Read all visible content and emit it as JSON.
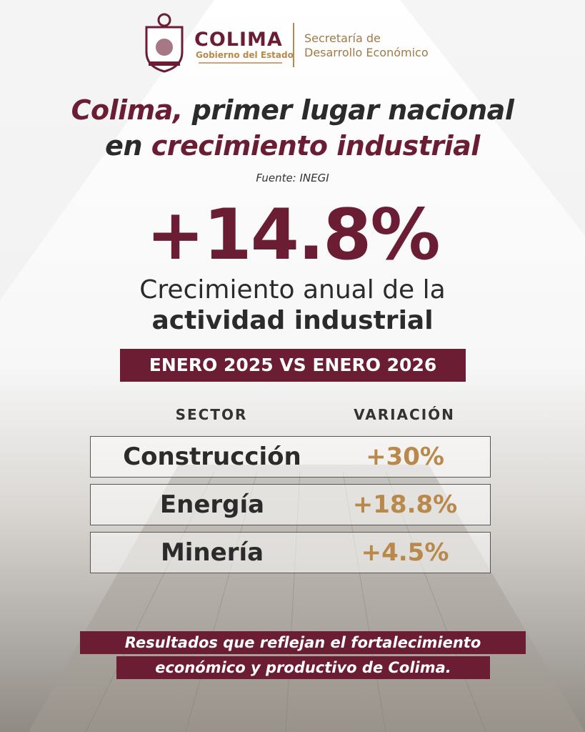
{
  "header": {
    "brand": "COLIMA",
    "brand_sub": "Gobierno del Estado",
    "office_line1": "Secretaría de",
    "office_line2": "Desarrollo Económico"
  },
  "title": {
    "line1": [
      {
        "text": "Colima,",
        "accent": true
      },
      {
        "text": "primer lugar nacional",
        "accent": false
      }
    ],
    "line2": [
      {
        "text": "en",
        "accent": false
      },
      {
        "text": "crecimiento industrial",
        "accent": true
      }
    ]
  },
  "source": "Fuente: INEGI",
  "headline": "+14.8%",
  "description": {
    "line1": "Crecimiento anual de la",
    "line2": "actividad industrial"
  },
  "period": "ENERO 2025 VS ENERO 2026",
  "table": {
    "columns": [
      "SECTOR",
      "VARIACIÓN"
    ],
    "rows": [
      [
        "Construcción",
        "+30%"
      ],
      [
        "Energía",
        "+18.8%"
      ],
      [
        "Minería",
        "+4.5%"
      ]
    ]
  },
  "footer": {
    "line1": "Resultados que reflejan el fortalecimiento",
    "line2": "económico y productivo de Colima."
  }
}
